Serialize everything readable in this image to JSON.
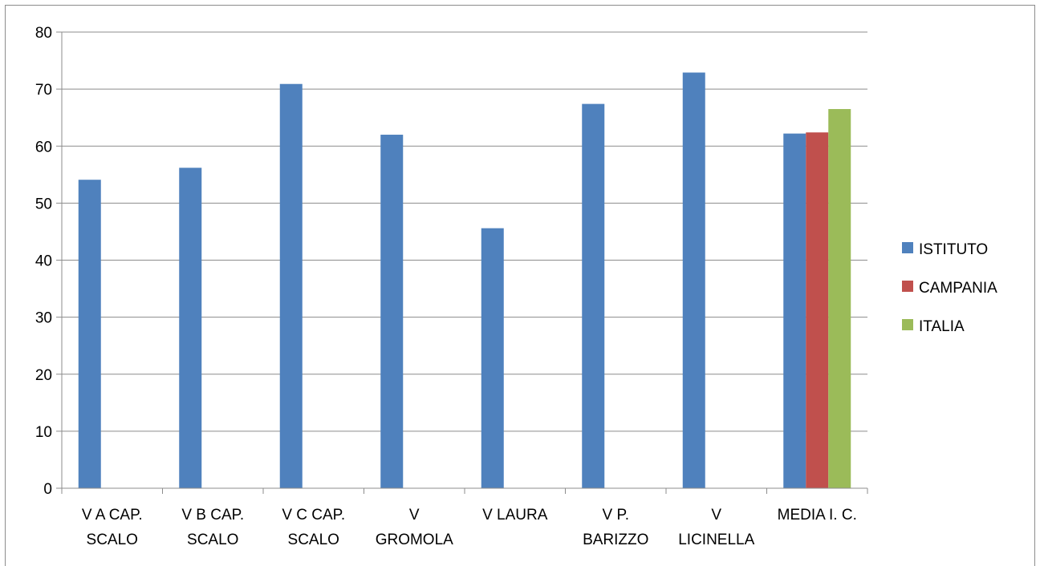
{
  "chart_data": {
    "type": "bar",
    "categories": [
      [
        "V A CAP.",
        "SCALO"
      ],
      [
        "V B CAP.",
        "SCALO"
      ],
      [
        "V C CAP.",
        "SCALO"
      ],
      [
        "V",
        "GROMOLA"
      ],
      [
        "V LAURA"
      ],
      [
        "V P.",
        "BARIZZO"
      ],
      [
        "V",
        "LICINELLA"
      ],
      [
        "MEDIA I. C."
      ]
    ],
    "series": [
      {
        "name": "ISTITUTO",
        "color": "#4F81BD",
        "values": [
          54.1,
          56.2,
          70.9,
          62.0,
          45.6,
          67.4,
          72.9,
          62.2
        ]
      },
      {
        "name": "CAMPANIA",
        "color": "#C0504D",
        "values": [
          null,
          null,
          null,
          null,
          null,
          null,
          null,
          62.4
        ]
      },
      {
        "name": "ITALIA",
        "color": "#9BBB59",
        "values": [
          null,
          null,
          null,
          null,
          null,
          null,
          null,
          66.5
        ]
      }
    ],
    "yticks": [
      "0",
      "10",
      "20",
      "30",
      "40",
      "50",
      "60",
      "70",
      "80"
    ],
    "ylim": [
      0,
      80
    ],
    "grid": true,
    "legend_position": "right"
  }
}
